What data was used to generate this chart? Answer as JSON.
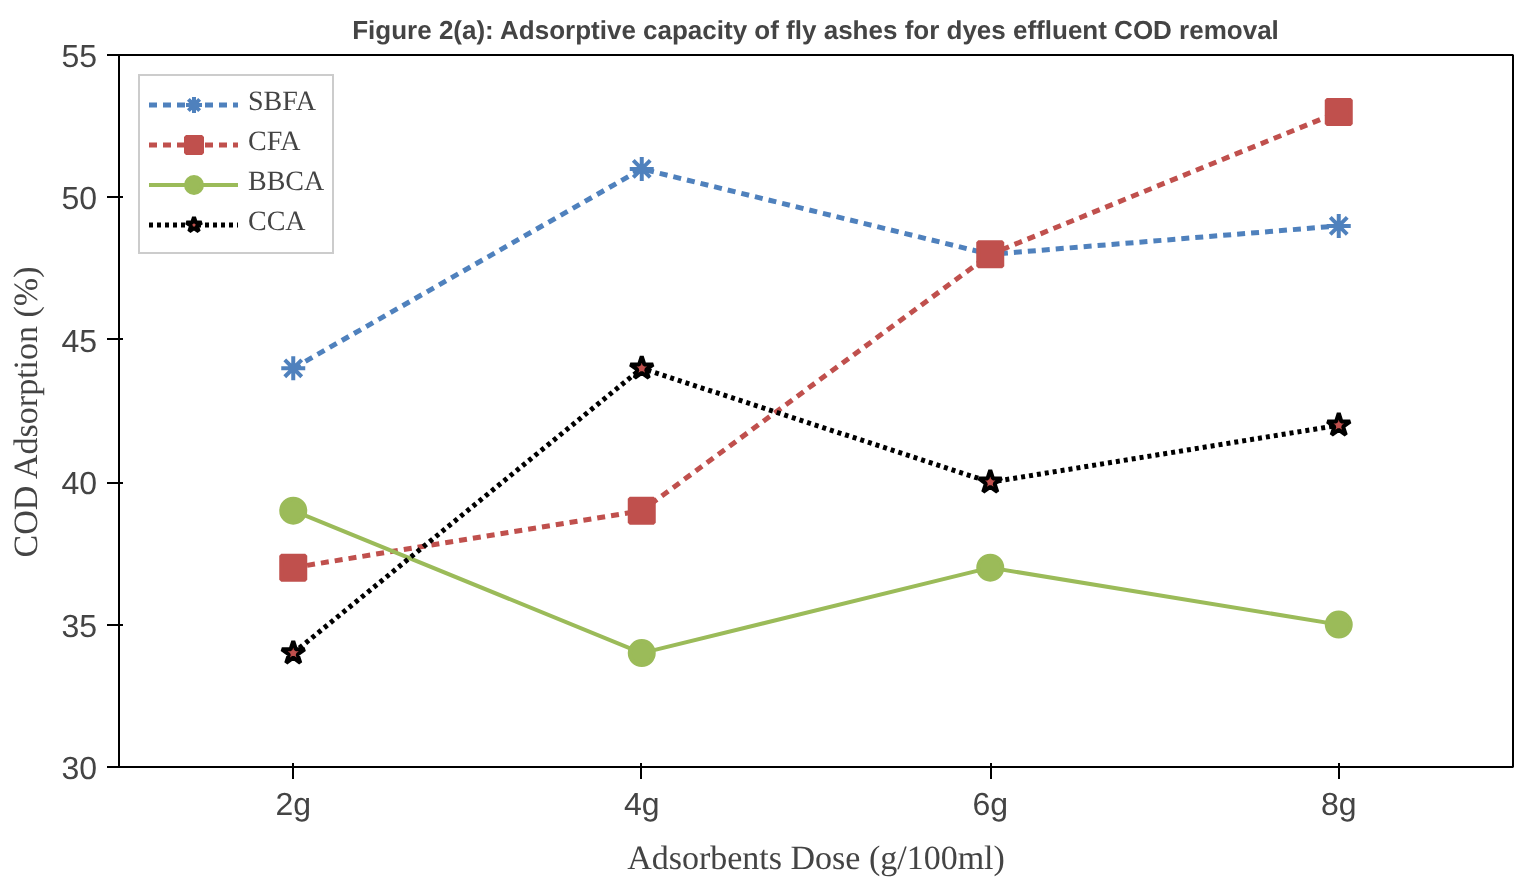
{
  "chart_data": {
    "type": "line",
    "title": "Figure 2(a): Adsorptive capacity of fly ashes for dyes effluent COD removal",
    "xlabel": "Adsorbents Dose (g/100ml)",
    "ylabel": "COD Adsorption (%)",
    "categories": [
      "2g",
      "4g",
      "6g",
      "8g"
    ],
    "ylim": [
      30,
      55
    ],
    "yticks": [
      30,
      35,
      40,
      45,
      50,
      55
    ],
    "grid": false,
    "legend": "top left",
    "series": [
      {
        "name": "SBFA",
        "color": "#4f81bd",
        "values": [
          44,
          51,
          48,
          49
        ],
        "marker": "cross",
        "line_style": "dashed"
      },
      {
        "name": "CFA",
        "color": "#c0504d",
        "values": [
          37,
          39,
          48,
          53
        ],
        "marker": "square",
        "line_style": "dashed"
      },
      {
        "name": "BBCA",
        "color": "#9bbb59",
        "values": [
          39,
          34,
          37,
          35
        ],
        "marker": "circle",
        "line_style": "solid"
      },
      {
        "name": "CCA",
        "color": "#000000",
        "values": [
          34,
          44,
          40,
          42
        ],
        "marker": "star",
        "line_style": "dotted"
      }
    ]
  }
}
